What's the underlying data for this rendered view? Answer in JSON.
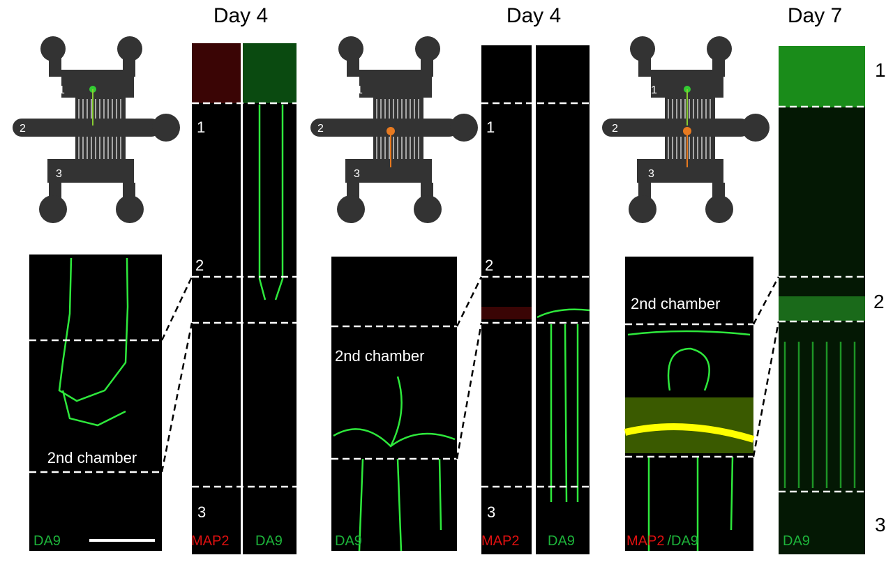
{
  "panels": [
    {
      "title": "Day 4",
      "device": {
        "labels": [
          "1",
          "2",
          "3"
        ]
      },
      "inset": {
        "label": "2nd chamber",
        "stains": [
          "DA9"
        ]
      },
      "strips": {
        "labels": [
          "1",
          "2",
          "3"
        ],
        "stains": [
          "MAP2",
          "DA9"
        ]
      }
    },
    {
      "title": "Day 4",
      "device": {
        "labels": [
          "1",
          "2",
          "3"
        ]
      },
      "inset": {
        "label": "2nd chamber",
        "stains": [
          "DA9"
        ]
      },
      "strips": {
        "labels": [
          "1",
          "2",
          "3"
        ],
        "stains": [
          "MAP2",
          "DA9"
        ]
      }
    },
    {
      "title": "Day 7",
      "device": {
        "labels": [
          "1",
          "2",
          "3"
        ]
      },
      "inset": {
        "label": "2nd chamber",
        "stains": [
          "MAP2",
          "/DA9"
        ]
      },
      "strips": {
        "labels": [
          "1",
          "2",
          "3"
        ],
        "stains": [
          "DA9"
        ]
      }
    }
  ]
}
